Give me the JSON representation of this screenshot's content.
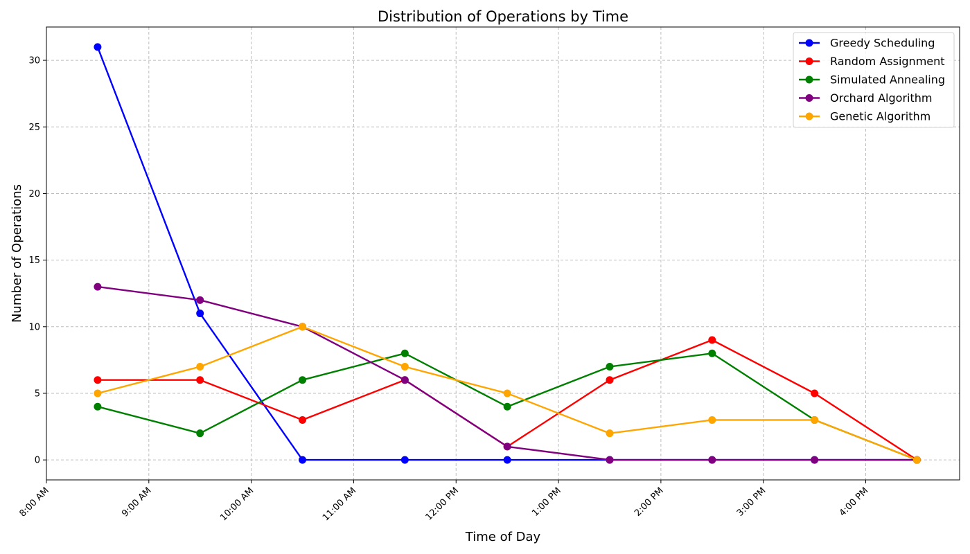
{
  "chart_data": {
    "type": "line",
    "title": "Distribution of Operations by Time",
    "xlabel": "Time of Day",
    "ylabel": "Number of Operations",
    "x_tick_labels": [
      "8:00 AM",
      "9:00 AM",
      "10:00 AM",
      "11:00 AM",
      "12:00 PM",
      "1:00 PM",
      "2:00 PM",
      "3:00 PM",
      "4:00 PM"
    ],
    "y_tick_labels": [
      "0",
      "5",
      "10",
      "15",
      "20",
      "25",
      "30"
    ],
    "x_points": [
      "8:30 AM",
      "9:30 AM",
      "10:30 AM",
      "11:30 AM",
      "12:30 PM",
      "1:30 PM",
      "2:30 PM",
      "3:30 PM",
      "4:30 PM"
    ],
    "xlim": [
      "8:00 AM",
      "4:55 PM"
    ],
    "ylim": [
      -1.5,
      32.5
    ],
    "grid": true,
    "legend_position": "top-right",
    "series": [
      {
        "name": "Greedy Scheduling",
        "color": "#0000ff",
        "values": [
          31,
          11,
          0,
          0,
          0,
          0,
          0,
          0,
          0
        ]
      },
      {
        "name": "Random Assignment",
        "color": "#ff0000",
        "values": [
          6,
          6,
          3,
          6,
          1,
          6,
          9,
          5,
          0
        ]
      },
      {
        "name": "Simulated Annealing",
        "color": "#008000",
        "values": [
          4,
          2,
          6,
          8,
          4,
          7,
          8,
          3,
          0
        ]
      },
      {
        "name": "Orchard Algorithm",
        "color": "#800080",
        "values": [
          13,
          12,
          10,
          6,
          1,
          0,
          0,
          0,
          0
        ]
      },
      {
        "name": "Genetic Algorithm",
        "color": "#ffa500",
        "values": [
          5,
          7,
          10,
          7,
          5,
          2,
          3,
          3,
          0
        ]
      }
    ]
  }
}
